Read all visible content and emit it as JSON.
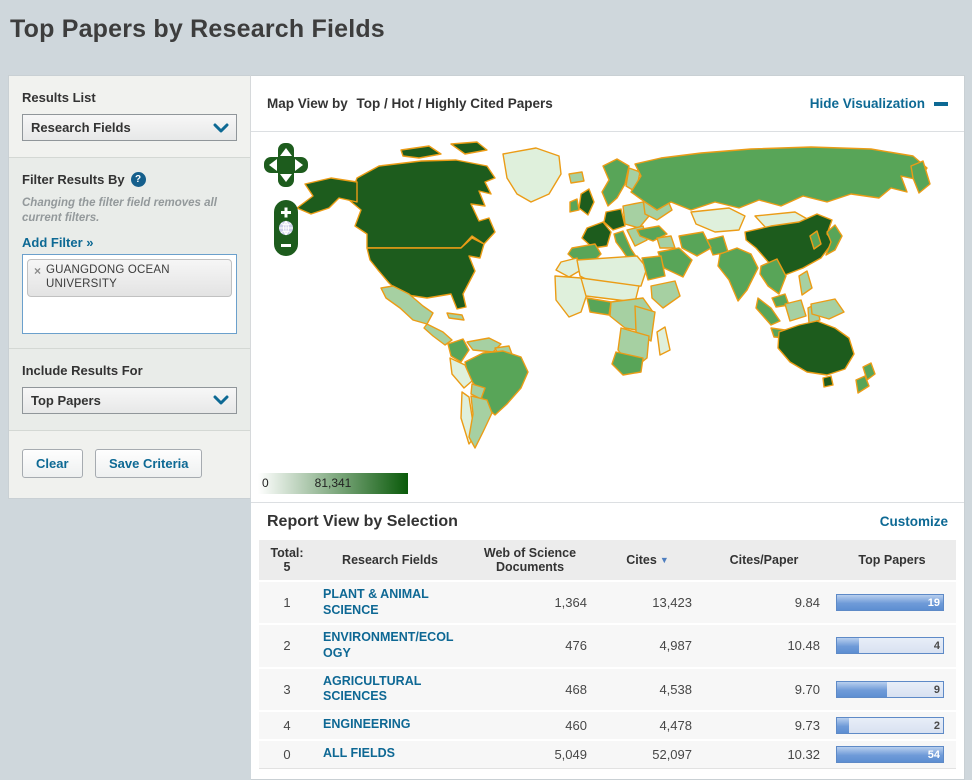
{
  "page": {
    "title": "Top Papers by Research Fields"
  },
  "sidebar": {
    "results_list": {
      "label": "Results List",
      "selected": "Research Fields"
    },
    "filter": {
      "label": "Filter Results By",
      "help": "?",
      "note": "Changing the filter field removes all current filters.",
      "add_filter_label": "Add Filter »",
      "tag": {
        "remove": "×",
        "label": "GUANGDONG OCEAN UNIVERSITY"
      }
    },
    "include": {
      "label": "Include Results For",
      "selected": "Top Papers"
    },
    "actions": {
      "clear": "Clear",
      "save": "Save Criteria"
    }
  },
  "map_panel": {
    "title_prefix": "Map View by",
    "title": "Top / Hot / Highly Cited Papers",
    "hide_link": "Hide Visualization",
    "legend": {
      "min": "0",
      "max": "81,341"
    },
    "controls": {
      "zoom_in": "+",
      "zoom_out": "−"
    }
  },
  "map": {
    "palette": {
      "dark": "#1d5c1d",
      "medium": "#58a558",
      "light": "#a6d0a2",
      "verylight": "#dff0dc",
      "border": "#eb9c16"
    },
    "regions": {
      "alaska": "dark",
      "canada": "dark",
      "usa": "dark",
      "greenland": "verylight",
      "mexico": "light",
      "central-america": "light",
      "cuba": "light",
      "colombia": "medium",
      "venezuela": "light",
      "guyanas": "light",
      "brazil": "medium",
      "peru": "verylight",
      "bolivia": "light",
      "chile": "verylight",
      "argentina": "light",
      "iceland": "light",
      "uk": "dark",
      "ireland": "medium",
      "norway-sweden": "medium",
      "finland": "light",
      "france": "dark",
      "germany": "dark",
      "spain": "medium",
      "italy": "medium",
      "central-europe": "light",
      "balkans": "light",
      "ukraine": "light",
      "russia": "medium",
      "kamchatka": "medium",
      "kazakhstan": "verylight",
      "mongolia": "verylight",
      "china": "dark",
      "korea": "medium",
      "japan": "medium",
      "india": "medium",
      "pakistan": "medium",
      "iran": "medium",
      "turkey": "medium",
      "iraq": "light",
      "saudi": "medium",
      "morocco": "verylight",
      "algeria-libya": "verylight",
      "egypt": "medium",
      "africa-west": "verylight",
      "africa-sahel": "verylight",
      "nigeria": "medium",
      "africa-central": "light",
      "horn": "light",
      "africa-east": "light",
      "africa-south": "light",
      "south-africa": "medium",
      "madagascar": "verylight",
      "indochina": "medium",
      "malaysia": "medium",
      "sumatra": "medium",
      "borneo": "light",
      "java": "medium",
      "sulawesi": "light",
      "philippines": "light",
      "new-guinea": "light",
      "australia": "dark",
      "tasmania": "dark",
      "new-zealand": "medium"
    }
  },
  "report": {
    "title_prefix": "Report View by",
    "title": "Selection",
    "customize_link": "Customize",
    "table": {
      "total_label": "Total:",
      "total_value": "5",
      "columns": {
        "field": "Research Fields",
        "docs": "Web of Science Documents",
        "cites": "Cites",
        "cites_per_paper": "Cites/Paper",
        "top_papers": "Top Papers"
      },
      "sorted_by": "Cites",
      "rows": [
        {
          "rank": "1",
          "field": "PLANT & ANIMAL SCIENCE",
          "docs": "1,364",
          "cites": "13,423",
          "cites_per_paper": "9.84",
          "top_papers": "19",
          "bar_pct": 100
        },
        {
          "rank": "2",
          "field": "ENVIRONMENT/ECOLOGY",
          "docs": "476",
          "cites": "4,987",
          "cites_per_paper": "10.48",
          "top_papers": "4",
          "bar_pct": 21
        },
        {
          "rank": "3",
          "field": "AGRICULTURAL SCIENCES",
          "docs": "468",
          "cites": "4,538",
          "cites_per_paper": "9.70",
          "top_papers": "9",
          "bar_pct": 47
        },
        {
          "rank": "4",
          "field": "ENGINEERING",
          "docs": "460",
          "cites": "4,478",
          "cites_per_paper": "9.73",
          "top_papers": "2",
          "bar_pct": 11
        },
        {
          "rank": "0",
          "field": "ALL FIELDS",
          "docs": "5,049",
          "cites": "52,097",
          "cites_per_paper": "10.32",
          "top_papers": "54",
          "bar_pct": 100
        }
      ]
    }
  }
}
